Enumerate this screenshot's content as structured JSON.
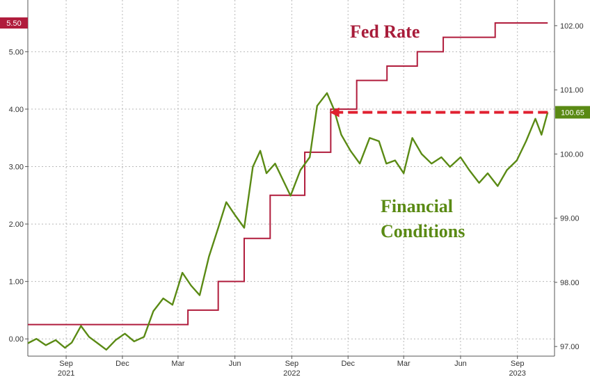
{
  "chart_data": {
    "type": "line",
    "title": "",
    "xlabel": "",
    "ylabel": "",
    "x_ticks": [
      {
        "label": "Sep",
        "date": "2021-09-01",
        "year": "2021"
      },
      {
        "label": "Dec",
        "date": "2021-12-01",
        "year": ""
      },
      {
        "label": "Mar",
        "date": "2022-03-01",
        "year": ""
      },
      {
        "label": "Jun",
        "date": "2022-06-01",
        "year": ""
      },
      {
        "label": "Sep",
        "date": "2022-09-01",
        "year": "2022"
      },
      {
        "label": "Dec",
        "date": "2022-12-01",
        "year": ""
      },
      {
        "label": "Mar",
        "date": "2023-03-01",
        "year": ""
      },
      {
        "label": "Jun",
        "date": "2023-06-01",
        "year": ""
      },
      {
        "label": "Sep",
        "date": "2023-09-01",
        "year": "2023"
      }
    ],
    "xlim": [
      "2021-07-01",
      "2023-10-31"
    ],
    "y_left": {
      "ylim": [
        -0.3,
        5.9
      ],
      "ticks": [
        "0.00",
        "1.00",
        "2.00",
        "3.00",
        "4.00",
        "5.00"
      ],
      "tick_values": [
        0,
        1,
        2,
        3,
        4,
        5
      ]
    },
    "y_right": {
      "ylim": [
        96.85,
        102.4
      ],
      "ticks": [
        "97.00",
        "98.00",
        "99.00",
        "100.00",
        "101.00",
        "102.00"
      ],
      "tick_values": [
        97,
        98,
        99,
        100,
        101,
        102
      ]
    },
    "grid": true,
    "series": [
      {
        "name": "Fed Rate",
        "axis": "left",
        "color": "#b01c3c",
        "step": true,
        "points": [
          [
            "2021-07-01",
            0.25
          ],
          [
            "2022-03-17",
            0.5
          ],
          [
            "2022-05-05",
            1.0
          ],
          [
            "2022-06-16",
            1.75
          ],
          [
            "2022-07-28",
            2.5
          ],
          [
            "2022-09-22",
            3.25
          ],
          [
            "2022-11-03",
            4.0
          ],
          [
            "2022-12-15",
            4.5
          ],
          [
            "2023-02-02",
            4.75
          ],
          [
            "2023-03-23",
            5.0
          ],
          [
            "2023-05-04",
            5.25
          ],
          [
            "2023-07-27",
            5.5
          ],
          [
            "2023-10-20",
            5.5
          ]
        ],
        "last_value_label": "5.50"
      },
      {
        "name": "Financial Conditions",
        "axis": "right",
        "color": "#5a8a14",
        "points": [
          [
            "2021-07-01",
            97.05
          ],
          [
            "2021-07-15",
            97.12
          ],
          [
            "2021-07-30",
            97.02
          ],
          [
            "2021-08-15",
            97.1
          ],
          [
            "2021-08-30",
            96.98
          ],
          [
            "2021-09-10",
            97.06
          ],
          [
            "2021-09-25",
            97.32
          ],
          [
            "2021-10-08",
            97.15
          ],
          [
            "2021-10-22",
            97.05
          ],
          [
            "2021-11-05",
            96.95
          ],
          [
            "2021-11-20",
            97.1
          ],
          [
            "2021-12-05",
            97.2
          ],
          [
            "2021-12-20",
            97.08
          ],
          [
            "2022-01-05",
            97.15
          ],
          [
            "2022-01-20",
            97.55
          ],
          [
            "2022-02-05",
            97.75
          ],
          [
            "2022-02-20",
            97.65
          ],
          [
            "2022-03-08",
            98.15
          ],
          [
            "2022-03-22",
            97.95
          ],
          [
            "2022-04-05",
            97.8
          ],
          [
            "2022-04-20",
            98.4
          ],
          [
            "2022-05-05",
            98.85
          ],
          [
            "2022-05-18",
            99.25
          ],
          [
            "2022-06-01",
            99.05
          ],
          [
            "2022-06-16",
            98.85
          ],
          [
            "2022-06-30",
            99.8
          ],
          [
            "2022-07-12",
            100.05
          ],
          [
            "2022-07-22",
            99.7
          ],
          [
            "2022-08-05",
            99.85
          ],
          [
            "2022-08-20",
            99.55
          ],
          [
            "2022-08-30",
            99.35
          ],
          [
            "2022-09-15",
            99.75
          ],
          [
            "2022-09-30",
            99.95
          ],
          [
            "2022-10-12",
            100.75
          ],
          [
            "2022-10-28",
            100.95
          ],
          [
            "2022-11-08",
            100.7
          ],
          [
            "2022-11-20",
            100.3
          ],
          [
            "2022-12-05",
            100.05
          ],
          [
            "2022-12-20",
            99.85
          ],
          [
            "2023-01-05",
            100.25
          ],
          [
            "2023-01-20",
            100.2
          ],
          [
            "2023-02-01",
            99.85
          ],
          [
            "2023-02-15",
            99.9
          ],
          [
            "2023-03-01",
            99.7
          ],
          [
            "2023-03-15",
            100.25
          ],
          [
            "2023-03-30",
            100.0
          ],
          [
            "2023-04-15",
            99.85
          ],
          [
            "2023-05-01",
            99.95
          ],
          [
            "2023-05-15",
            99.8
          ],
          [
            "2023-06-01",
            99.95
          ],
          [
            "2023-06-15",
            99.75
          ],
          [
            "2023-07-01",
            99.55
          ],
          [
            "2023-07-15",
            99.7
          ],
          [
            "2023-07-31",
            99.5
          ],
          [
            "2023-08-15",
            99.75
          ],
          [
            "2023-08-31",
            99.9
          ],
          [
            "2023-09-15",
            100.2
          ],
          [
            "2023-09-30",
            100.55
          ],
          [
            "2023-10-10",
            100.3
          ],
          [
            "2023-10-20",
            100.65
          ]
        ],
        "last_value_label": "100.65"
      }
    ],
    "annotations": {
      "fed_rate_label": "Fed Rate",
      "fc_label_line1": "Financial",
      "fc_label_line2": "Conditions",
      "dashed_arrow": {
        "from_date": "2023-10-20",
        "to_date": "2022-11-01",
        "value_right": 100.65,
        "color": "#e02030"
      }
    }
  }
}
